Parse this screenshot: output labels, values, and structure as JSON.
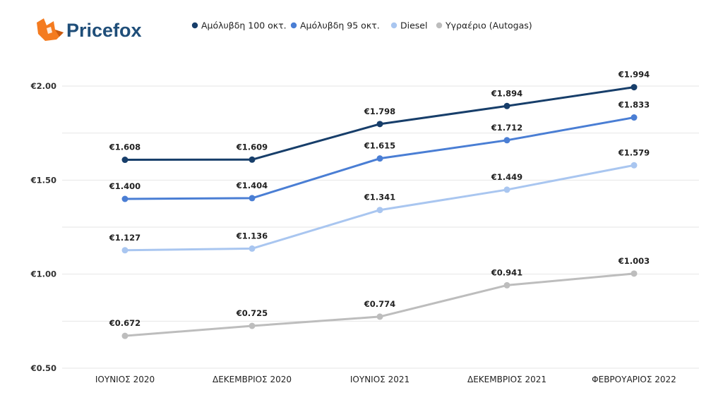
{
  "brand": {
    "name": "Pricefox",
    "color": "#1f4e79",
    "accent": "#f47b20",
    "icon": "fox-logo-icon"
  },
  "chart_data": {
    "type": "line",
    "categories": [
      "ΙΟΥΝΙΟΣ 2020",
      "ΔΕΚΕΜΒΡΙΟΣ 2020",
      "ΙΟΥΝΙΟΣ 2021",
      "ΔΕΚΕΜΒΡΙΟΣ 2021",
      "ΦΕΒΡΟΥΑΡΙΟΣ 2022"
    ],
    "ylim": [
      0.5,
      2.0
    ],
    "yticks": [
      0.5,
      1.0,
      1.5,
      2.0
    ],
    "ytick_labels": [
      "€0.50",
      "€1.00",
      "€1.50",
      "€2.00"
    ],
    "grid": true,
    "legend_position": "top",
    "series": [
      {
        "name": "Αμόλυβδη 100 οκτ.",
        "color": "#173e6a",
        "values": [
          1.608,
          1.609,
          1.798,
          1.894,
          1.994
        ],
        "labels": [
          "€1.608",
          "€1.609",
          "€1.798",
          "€1.894",
          "€1.994"
        ]
      },
      {
        "name": "Αμόλυβδη 95 οκτ.",
        "color": "#4a7ed4",
        "values": [
          1.4,
          1.404,
          1.615,
          1.712,
          1.833
        ],
        "labels": [
          "€1.400",
          "€1.404",
          "€1.615",
          "€1.712",
          "€1.833"
        ]
      },
      {
        "name": "Diesel",
        "color": "#a9c6f0",
        "values": [
          1.127,
          1.136,
          1.341,
          1.449,
          1.579
        ],
        "labels": [
          "€1.127",
          "€1.136",
          "€1.341",
          "€1.449",
          "€1.579"
        ]
      },
      {
        "name": "Υγραέριο (Autogas)",
        "color": "#bdbdbd",
        "values": [
          0.672,
          0.725,
          0.774,
          0.941,
          1.003
        ],
        "labels": [
          "€0.672",
          "€0.725",
          "€0.774",
          "€0.941",
          "€1.003"
        ]
      }
    ]
  }
}
